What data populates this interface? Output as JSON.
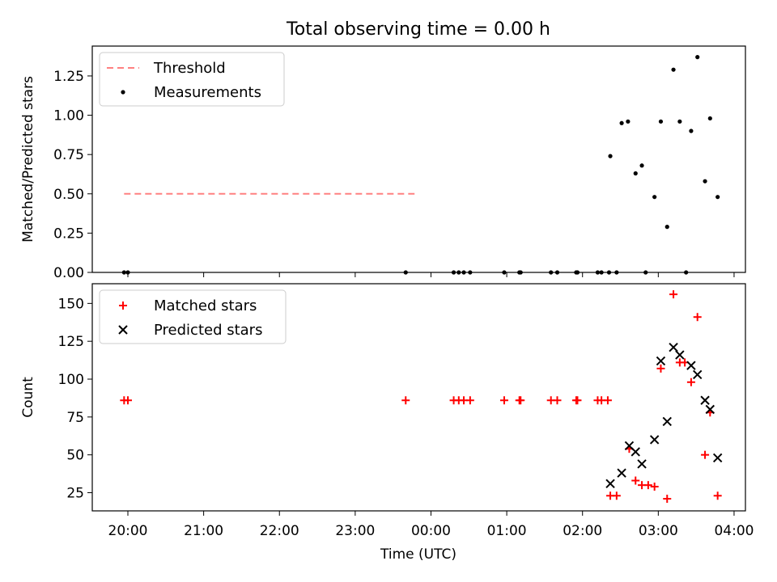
{
  "chart_data": {
    "title": "Total observing time = 0.00 h",
    "xlabel": "Time (UTC)",
    "x_ticks": [
      "20:00",
      "21:00",
      "22:00",
      "23:00",
      "00:00",
      "01:00",
      "02:00",
      "03:00",
      "04:00"
    ],
    "colors": {
      "threshold": "#ff8080",
      "measurements": "#000000",
      "matched": "#ff0000",
      "predicted": "#000000"
    },
    "panels": [
      {
        "type": "scatter",
        "ylabel": "Matched/Predicted stars",
        "ylim": [
          0,
          1.44
        ],
        "y_ticks": [
          "0.00",
          "0.25",
          "0.50",
          "0.75",
          "1.00",
          "1.25"
        ],
        "legend": {
          "position": "top-left",
          "entries": [
            "Threshold",
            "Measurements"
          ]
        },
        "threshold": {
          "name": "Threshold",
          "value": 0.5,
          "x_range": [
            "19:57",
            "23:47"
          ]
        },
        "series": [
          {
            "name": "Measurements",
            "marker": "dot",
            "points": [
              [
                "19:57",
                0
              ],
              [
                "20:00",
                0
              ],
              [
                "23:40",
                0
              ],
              [
                "00:18",
                0
              ],
              [
                "00:22",
                0
              ],
              [
                "00:26",
                0
              ],
              [
                "00:31",
                0
              ],
              [
                "00:58",
                0
              ],
              [
                "01:10",
                0
              ],
              [
                "01:11",
                0
              ],
              [
                "01:35",
                0
              ],
              [
                "01:40",
                0
              ],
              [
                "01:55",
                0
              ],
              [
                "01:56",
                0
              ],
              [
                "02:12",
                0
              ],
              [
                "02:15",
                0
              ],
              [
                "02:21",
                0
              ],
              [
                "02:27",
                0
              ],
              [
                "02:50",
                0
              ],
              [
                "03:22",
                0
              ],
              [
                "02:22",
                0.74
              ],
              [
                "02:31",
                0.95
              ],
              [
                "02:36",
                0.96
              ],
              [
                "02:42",
                0.63
              ],
              [
                "02:47",
                0.68
              ],
              [
                "02:57",
                0.48
              ],
              [
                "03:02",
                0.96
              ],
              [
                "03:07",
                0.29
              ],
              [
                "03:12",
                1.29
              ],
              [
                "03:17",
                0.96
              ],
              [
                "03:26",
                0.9
              ],
              [
                "03:31",
                1.37
              ],
              [
                "03:37",
                0.58
              ],
              [
                "03:41",
                0.98
              ],
              [
                "03:47",
                0.48
              ]
            ]
          }
        ]
      },
      {
        "type": "scatter",
        "ylabel": "Count",
        "ylim": [
          13,
          163
        ],
        "y_ticks": [
          "25",
          "50",
          "75",
          "100",
          "125",
          "150"
        ],
        "legend": {
          "position": "top-left",
          "entries": [
            "Matched stars",
            "Predicted stars"
          ]
        },
        "series": [
          {
            "name": "Matched stars",
            "marker": "plus",
            "points": [
              [
                "19:57",
                86
              ],
              [
                "20:00",
                86
              ],
              [
                "23:40",
                86
              ],
              [
                "00:18",
                86
              ],
              [
                "00:22",
                86
              ],
              [
                "00:26",
                86
              ],
              [
                "00:31",
                86
              ],
              [
                "00:58",
                86
              ],
              [
                "01:10",
                86
              ],
              [
                "01:11",
                86
              ],
              [
                "01:35",
                86
              ],
              [
                "01:40",
                86
              ],
              [
                "01:55",
                86
              ],
              [
                "01:56",
                86
              ],
              [
                "02:12",
                86
              ],
              [
                "02:15",
                86
              ],
              [
                "02:20",
                86
              ],
              [
                "02:22",
                23
              ],
              [
                "02:27",
                23
              ],
              [
                "02:37",
                54
              ],
              [
                "02:42",
                33
              ],
              [
                "02:47",
                30
              ],
              [
                "02:52",
                30
              ],
              [
                "02:57",
                29
              ],
              [
                "03:02",
                107
              ],
              [
                "03:07",
                21
              ],
              [
                "03:12",
                156
              ],
              [
                "03:17",
                111
              ],
              [
                "03:21",
                111
              ],
              [
                "03:26",
                98
              ],
              [
                "03:31",
                141
              ],
              [
                "03:37",
                50
              ],
              [
                "03:41",
                78
              ],
              [
                "03:47",
                23
              ]
            ]
          },
          {
            "name": "Predicted stars",
            "marker": "x",
            "points": [
              [
                "02:22",
                31
              ],
              [
                "02:31",
                38
              ],
              [
                "02:37",
                56
              ],
              [
                "02:42",
                52
              ],
              [
                "02:47",
                44
              ],
              [
                "02:57",
                60
              ],
              [
                "03:02",
                112
              ],
              [
                "03:07",
                72
              ],
              [
                "03:12",
                121
              ],
              [
                "03:17",
                116
              ],
              [
                "03:26",
                109
              ],
              [
                "03:31",
                103
              ],
              [
                "03:37",
                86
              ],
              [
                "03:41",
                80
              ],
              [
                "03:47",
                48
              ]
            ]
          }
        ]
      }
    ]
  }
}
